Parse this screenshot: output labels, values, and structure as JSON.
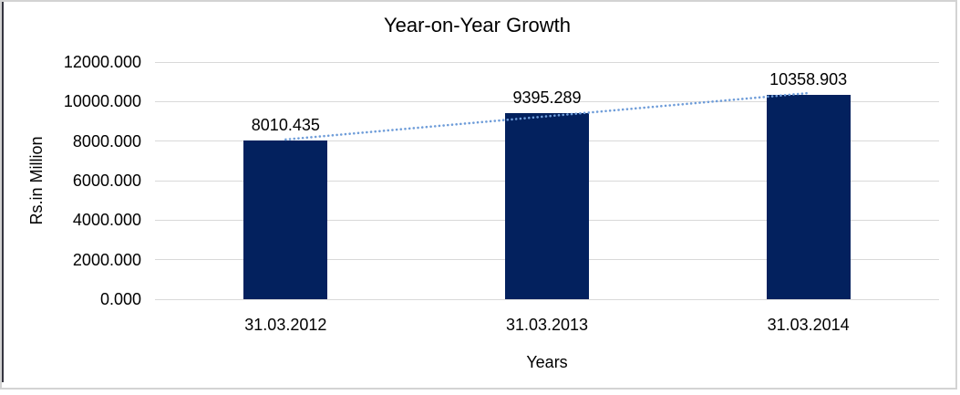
{
  "chart_data": {
    "type": "bar",
    "title": "Year-on-Year Growth",
    "categories": [
      "31.03.2012",
      "31.03.2013",
      "31.03.2014"
    ],
    "values": [
      8010.435,
      9395.289,
      10358.903
    ],
    "data_labels": [
      "8010.435",
      "9395.289",
      "10358.903"
    ],
    "xlabel": "Years",
    "ylabel": "Rs.in Million",
    "ylim": [
      0,
      12000
    ],
    "ytick_step": 2000,
    "ytick_labels": [
      "0.000",
      "2000.000",
      "4000.000",
      "6000.000",
      "8000.000",
      "10000.000",
      "12000.000"
    ],
    "grid": true,
    "legend": "none",
    "trendline": {
      "type": "linear",
      "style": "dotted"
    },
    "colors": {
      "bar": "#03215e",
      "gridline": "#d9d9d9",
      "trendline": "#6f9dd9",
      "text": "#000000",
      "frame_border": "#d3d3d3",
      "left_edge": "#35353f"
    }
  }
}
